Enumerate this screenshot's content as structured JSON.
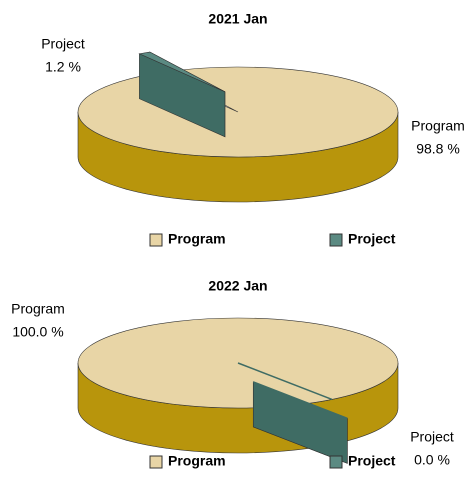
{
  "chart_data": [
    {
      "type": "pie",
      "title": "2021 Jan",
      "categories": [
        "Program",
        "Project"
      ],
      "values": [
        98.8,
        1.2
      ],
      "value_labels": [
        "98.8 %",
        "1.2 %"
      ],
      "colors": [
        "#e8d5a6",
        "#5b8a82"
      ],
      "side_colors": [
        "#b8950c",
        "#3f6c64"
      ],
      "legend": "bottom"
    },
    {
      "type": "pie",
      "title": "2022 Jan",
      "categories": [
        "Program",
        "Project"
      ],
      "values": [
        100.0,
        0.0
      ],
      "value_labels": [
        "100.0 %",
        "0.0 %"
      ],
      "colors": [
        "#e8d5a6",
        "#5b8a82"
      ],
      "side_colors": [
        "#b8950c",
        "#3f6c64"
      ],
      "legend": "bottom"
    }
  ]
}
